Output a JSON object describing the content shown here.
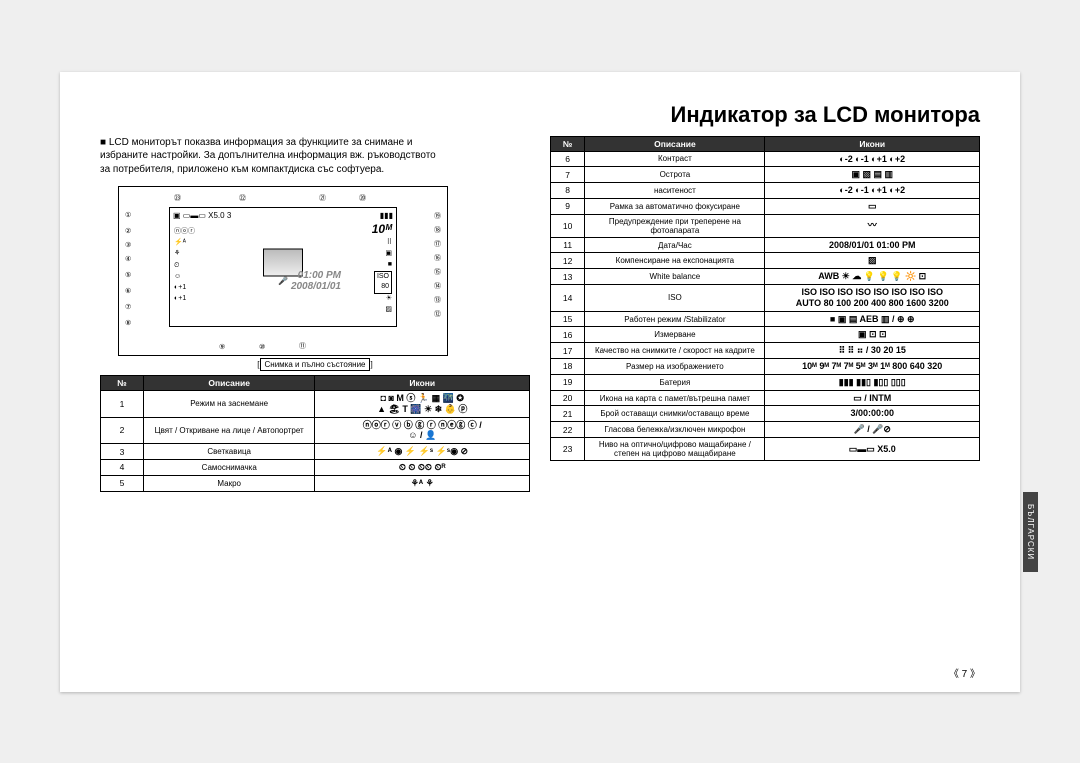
{
  "title": "Индикатор за LCD монитора",
  "intro_bullet": "■",
  "intro_lines": [
    "LCD мониторът показва информация за функциите за снимане и",
    "избраните настройки. За допълнителна информация вж. ръководството",
    "за потребителя, приложено към компактдиска със софтуера."
  ],
  "diagram": {
    "time": "01:00 PM",
    "date": "2008/01/01",
    "top_zoom": "X5.0",
    "caption_prefix": "[",
    "caption": "Снимка и пълно състояние",
    "caption_suffix": "]",
    "callouts_left": [
      "①",
      "②",
      "③",
      "④",
      "⑤",
      "⑥",
      "⑦",
      "⑧"
    ],
    "callouts_top": [
      "㉓",
      "㉒",
      "㉑",
      "⑳"
    ],
    "callouts_right": [
      "⑲",
      "⑱",
      "⑰",
      "⑯",
      "⑮",
      "⑭",
      "⑬",
      "⑫"
    ],
    "callouts_bottom": [
      "⑨",
      "⑩",
      "⑪"
    ]
  },
  "table_headers": {
    "num": "№",
    "desc": "Описание",
    "icons": "Икони"
  },
  "left_rows": [
    {
      "n": "1",
      "desc": "Режим на заснемане",
      "icons": "◘ ◙ M ⓢ 🏃 ▦ 🌃 ✪\n▲ 🏖 T 🎆 ☀ ❄ 👶 ⓟ"
    },
    {
      "n": "2",
      "desc": "Цвят / Откриване на лице / Автопортрет",
      "icons": "ⓝⓞⓡ ⓥ ⓑ ⓖ ⓡ ⓝⓔⓖ ⓒ /\n☺ / 👤"
    },
    {
      "n": "3",
      "desc": "Светкавица",
      "icons": "⚡ᴬ ◉ ⚡ ⚡ˢ ⚡ˢ◉ ⊘"
    },
    {
      "n": "4",
      "desc": "Самоснимачка",
      "icons": "⏲ ⏲ ⏲⏲ ⏲ᴿ"
    },
    {
      "n": "5",
      "desc": "Макро",
      "icons": "⚘ᴬ ⚘"
    }
  ],
  "right_rows": [
    {
      "n": "6",
      "desc": "Контраст",
      "icons": "◐-2 ◐-1 ◐+1 ◐+2"
    },
    {
      "n": "7",
      "desc": "Острота",
      "icons": "▣ ▧ ▤ ▥"
    },
    {
      "n": "8",
      "desc": "наситеност",
      "icons": "◐-2 ◐-1 ◐+1 ◐+2"
    },
    {
      "n": "9",
      "desc": "Рамка за автоматично фокусиране",
      "icons": "▭"
    },
    {
      "n": "10",
      "desc": "Предупреждение при треперене на фотоапарата",
      "icons": "〰"
    },
    {
      "n": "11",
      "desc": "Дата/Час",
      "icons": "2008/01/01  01:00 PM"
    },
    {
      "n": "12",
      "desc": "Компенсиране на експонацията",
      "icons": "▨"
    },
    {
      "n": "13",
      "desc": "White balance",
      "icons": "AWB ☀ ☁ 💡 💡 💡 🔆 ⊡"
    },
    {
      "n": "14",
      "desc": "ISO",
      "icons": "ISO ISO ISO ISO ISO ISO ISO ISO\nAUTO 80 100 200 400 800 1600 3200"
    },
    {
      "n": "15",
      "desc": "Работен режим /Stabilizator",
      "icons": "■ ▣ ▤ AEB ▥ / ⊕ ⊕"
    },
    {
      "n": "16",
      "desc": "Измерване",
      "icons": "▣ ⊡ ⊡"
    },
    {
      "n": "17",
      "desc": "Качество на снимките / скорост на кадрите",
      "icons": "⠿ ⠿ ⠶ / 30 20 15"
    },
    {
      "n": "18",
      "desc": "Размер на изображението",
      "icons": "10ᴹ 9ᴹ 7ᴹ 7ᴹ 5ᴹ 3ᴹ 1ᴹ 800 640 320"
    },
    {
      "n": "19",
      "desc": "Батерия",
      "icons": "▮▮▮ ▮▮▯ ▮▯▯ ▯▯▯"
    },
    {
      "n": "20",
      "desc": "Икона на карта с памет/вътрешна памет",
      "icons": "▭ / INTM"
    },
    {
      "n": "21",
      "desc": "Брой оставащи снимки/оставащо време",
      "icons": "3/00:00:00"
    },
    {
      "n": "22",
      "desc": "Гласова бележка/изключен микрофон",
      "icons": "🎤 / 🎤⊘"
    },
    {
      "n": "23",
      "desc": "Ниво на оптично/цифрово мащабиране / степен на цифрово мащабиране",
      "icons": "▭▬▭ X5.0"
    }
  ],
  "side_tab": "БЪЛГАРСКИ",
  "page_number": "《 7 》"
}
